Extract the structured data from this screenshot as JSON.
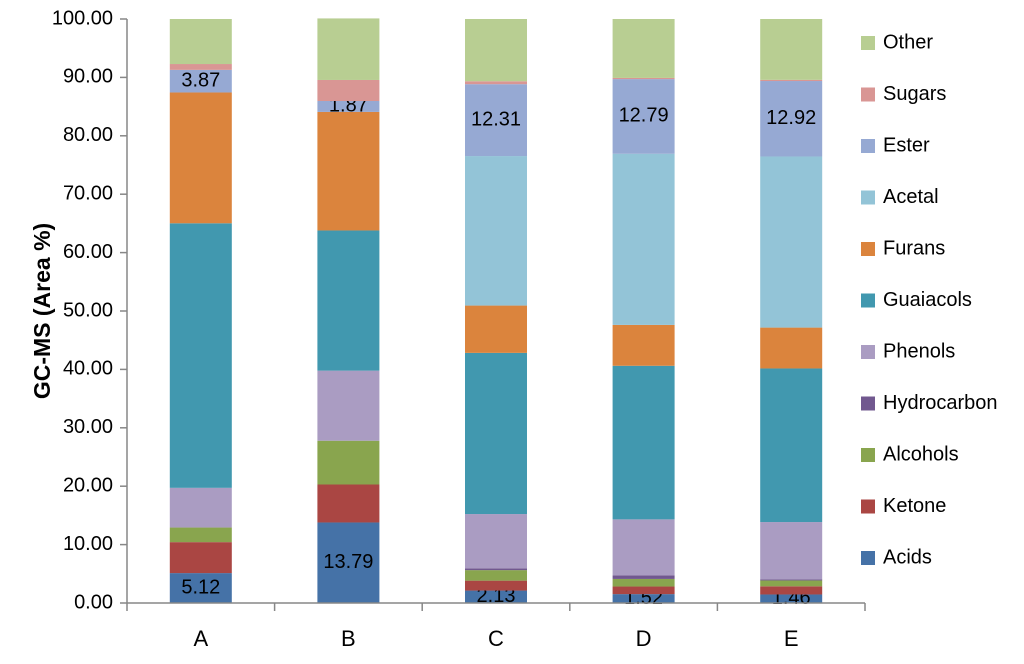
{
  "chart_data": {
    "type": "bar",
    "stacked": true,
    "title": "",
    "xlabel": "",
    "ylabel": "GC-MS (Area %)",
    "ylim": [
      0,
      100
    ],
    "yticks": [
      "0.00",
      "10.00",
      "20.00",
      "30.00",
      "40.00",
      "50.00",
      "60.00",
      "70.00",
      "80.00",
      "90.00",
      "100.00"
    ],
    "grid": false,
    "legend_position": "right",
    "categories": [
      "A",
      "B",
      "C",
      "D",
      "E"
    ],
    "series": [
      {
        "name": "Acids",
        "color": "#4572A7",
        "values": [
          5.12,
          13.79,
          2.13,
          1.52,
          1.46
        ],
        "labels": [
          "5.12",
          "13.79",
          "2.13",
          "1.52",
          "1.46"
        ]
      },
      {
        "name": "Ketone",
        "color": "#AA4643",
        "values": [
          5.3,
          6.5,
          1.7,
          1.3,
          1.4
        ]
      },
      {
        "name": "Alcohols",
        "color": "#89A54E",
        "values": [
          2.5,
          7.5,
          1.8,
          1.3,
          1.0
        ]
      },
      {
        "name": "Hydrocarbon",
        "color": "#71588F",
        "values": [
          0.0,
          0.0,
          0.3,
          0.6,
          0.2
        ]
      },
      {
        "name": "Phenols",
        "color": "#AA9CC2",
        "values": [
          6.8,
          12.0,
          9.3,
          9.6,
          9.8
        ]
      },
      {
        "name": "Guaiacols",
        "color": "#4198AF",
        "values": [
          45.3,
          24.0,
          27.6,
          26.3,
          26.3
        ]
      },
      {
        "name": "Furans",
        "color": "#DB843D",
        "values": [
          22.4,
          20.3,
          8.1,
          7.0,
          7.0
        ]
      },
      {
        "name": "Acetal",
        "color": "#93C4D7",
        "values": [
          0.0,
          0.0,
          25.6,
          29.3,
          29.3
        ]
      },
      {
        "name": "Ester",
        "color": "#96A9D3",
        "values": [
          3.87,
          1.87,
          12.31,
          12.79,
          12.92
        ],
        "labels": [
          "3.87",
          "1.87",
          "12.31",
          "12.79",
          "12.92"
        ]
      },
      {
        "name": "Sugars",
        "color": "#D99694",
        "values": [
          1.0,
          3.6,
          0.5,
          0.2,
          0.2
        ]
      },
      {
        "name": "Other",
        "color": "#B8CE92",
        "values": [
          7.71,
          10.54,
          10.66,
          10.09,
          10.42
        ]
      }
    ]
  }
}
